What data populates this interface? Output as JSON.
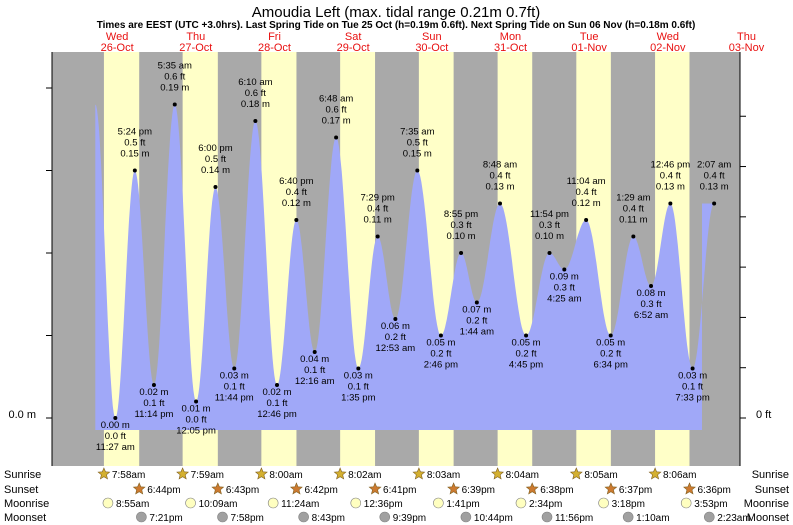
{
  "header": {
    "title": "Amoudia Left (max. tidal range 0.21m 0.7ft)",
    "subtitle": "Times are EEST (UTC +3.0hrs). Last Spring Tide on Tue 25 Oct (h=0.19m 0.6ft). Next Spring Tide on Sun 06 Nov (h=0.18m 0.6ft)"
  },
  "days": [
    {
      "dow": "Wed",
      "date": "26-Oct"
    },
    {
      "dow": "Thu",
      "date": "27-Oct"
    },
    {
      "dow": "Fri",
      "date": "28-Oct"
    },
    {
      "dow": "Sat",
      "date": "29-Oct"
    },
    {
      "dow": "Sun",
      "date": "30-Oct"
    },
    {
      "dow": "Mon",
      "date": "31-Oct"
    },
    {
      "dow": "Tue",
      "date": "01-Nov"
    },
    {
      "dow": "Wed",
      "date": "02-Nov"
    },
    {
      "dow": "Thu",
      "date": "03-Nov"
    }
  ],
  "axis": {
    "left_label": "0.0 m",
    "right_label": "0 ft"
  },
  "row_labels": [
    "Sunrise",
    "Sunset",
    "Moonrise",
    "Moonset"
  ],
  "astro": {
    "sunrise": [
      "7:58am",
      "7:59am",
      "8:00am",
      "8:02am",
      "8:03am",
      "8:04am",
      "8:05am",
      "8:06am"
    ],
    "sunset": [
      "6:44pm",
      "6:43pm",
      "6:42pm",
      "6:41pm",
      "6:39pm",
      "6:38pm",
      "6:37pm",
      "6:36pm"
    ],
    "moonrise": [
      "8:55am",
      "10:09am",
      "11:24am",
      "12:36pm",
      "1:41pm",
      "2:34pm",
      "3:18pm",
      "3:53pm"
    ],
    "moonset": [
      "7:21pm",
      "7:58pm",
      "8:43pm",
      "9:39pm",
      "10:44pm",
      "11:56pm",
      "1:10am",
      "2:23am"
    ]
  },
  "colors": {
    "night": "#a9a9a9",
    "day": "#ffffc8",
    "water": "#a0a8f8",
    "day_label": "#e81010",
    "sun_star": "#d4b030",
    "sunset_star": "#cc7a30",
    "moon": "#ffffc0",
    "moonset": "#a0a0a0"
  },
  "chart_data": {
    "type": "area",
    "x_unit": "hours since 26-Oct 00:00 EEST",
    "y_unit": "m",
    "ylim": [
      0,
      0.21
    ],
    "extremes": [
      {
        "label": "0.00 m",
        "ft": "0.0 ft",
        "time": "11:27 am",
        "t": 11.45,
        "h": 0.0,
        "type": "low"
      },
      {
        "label": "5:24 pm",
        "ft": "0.5 ft",
        "time": "0.15 m",
        "t": 17.4,
        "h": 0.15,
        "type": "high"
      },
      {
        "label": "0.02 m",
        "ft": "0.1 ft",
        "time": "11:14 pm",
        "t": 23.23,
        "h": 0.02,
        "type": "low"
      },
      {
        "label": "5:35 am",
        "ft": "0.6 ft",
        "time": "0.19 m",
        "t": 29.58,
        "h": 0.19,
        "type": "high"
      },
      {
        "label": "0.01 m",
        "ft": "0.0 ft",
        "time": "12:05 pm",
        "t": 36.08,
        "h": 0.01,
        "type": "low"
      },
      {
        "label": "6:00 pm",
        "ft": "0.5 ft",
        "time": "0.14 m",
        "t": 42.0,
        "h": 0.14,
        "type": "high"
      },
      {
        "label": "0.03 m",
        "ft": "0.1 ft",
        "time": "11:44 pm",
        "t": 47.73,
        "h": 0.03,
        "type": "low"
      },
      {
        "label": "6:10 am",
        "ft": "0.6 ft",
        "time": "0.18 m",
        "t": 54.17,
        "h": 0.18,
        "type": "high"
      },
      {
        "label": "0.02 m",
        "ft": "0.1 ft",
        "time": "12:46 pm",
        "t": 60.77,
        "h": 0.02,
        "type": "low"
      },
      {
        "label": "6:40 pm",
        "ft": "0.4 ft",
        "time": "0.12 m",
        "t": 66.67,
        "h": 0.12,
        "type": "high"
      },
      {
        "label": "0.04 m",
        "ft": "0.1 ft",
        "time": "12:16 am",
        "t": 72.27,
        "h": 0.04,
        "type": "low"
      },
      {
        "label": "6:48 am",
        "ft": "0.6 ft",
        "time": "0.17 m",
        "t": 78.8,
        "h": 0.17,
        "type": "high"
      },
      {
        "label": "0.03 m",
        "ft": "0.1 ft",
        "time": "1:35 pm",
        "t": 85.58,
        "h": 0.03,
        "type": "low"
      },
      {
        "label": "7:29 pm",
        "ft": "0.4 ft",
        "time": "0.11 m",
        "t": 91.48,
        "h": 0.11,
        "type": "high"
      },
      {
        "label": "0.06 m",
        "ft": "0.2 ft",
        "time": "12:53 am",
        "t": 96.88,
        "h": 0.06,
        "type": "low"
      },
      {
        "label": "7:35 am",
        "ft": "0.5 ft",
        "time": "0.15 m",
        "t": 103.58,
        "h": 0.15,
        "type": "high"
      },
      {
        "label": "0.05 m",
        "ft": "0.2 ft",
        "time": "2:46 pm",
        "t": 110.77,
        "h": 0.05,
        "type": "low"
      },
      {
        "label": "8:55 pm",
        "ft": "0.3 ft",
        "time": "0.10 m",
        "t": 116.92,
        "h": 0.1,
        "type": "high"
      },
      {
        "label": "0.07 m",
        "ft": "0.2 ft",
        "time": "1:44 am",
        "t": 121.73,
        "h": 0.07,
        "type": "low"
      },
      {
        "label": "8:48 am",
        "ft": "0.4 ft",
        "time": "0.13 m",
        "t": 128.8,
        "h": 0.13,
        "type": "high"
      },
      {
        "label": "0.05 m",
        "ft": "0.2 ft",
        "time": "4:45 pm",
        "t": 136.75,
        "h": 0.05,
        "type": "low"
      },
      {
        "label": "11:54 pm",
        "ft": "0.3 ft",
        "time": "0.10 m",
        "t": 143.9,
        "h": 0.1,
        "type": "high"
      },
      {
        "label": "0.09 m",
        "ft": "0.3 ft",
        "time": "4:25 am",
        "t": 148.42,
        "h": 0.09,
        "type": "low"
      },
      {
        "label": "11:04 am",
        "ft": "0.4 ft",
        "time": "0.12 m",
        "t": 155.07,
        "h": 0.12,
        "type": "high"
      },
      {
        "label": "0.05 m",
        "ft": "0.2 ft",
        "time": "6:34 pm",
        "t": 162.57,
        "h": 0.05,
        "type": "low"
      },
      {
        "label": "1:29 am",
        "ft": "0.4 ft",
        "time": "0.11 m",
        "t": 169.48,
        "h": 0.11,
        "type": "high"
      },
      {
        "label": "0.08 m",
        "ft": "0.3 ft",
        "time": "6:52 am",
        "t": 174.87,
        "h": 0.08,
        "type": "low"
      },
      {
        "label": "12:46 pm",
        "ft": "0.4 ft",
        "time": "0.13 m",
        "t": 180.77,
        "h": 0.13,
        "type": "high"
      },
      {
        "label": "0.03 m",
        "ft": "0.1 ft",
        "time": "7:33 pm",
        "t": 187.55,
        "h": 0.03,
        "type": "low"
      },
      {
        "label": "2:07 am",
        "ft": "0.4 ft",
        "time": "0.13 m",
        "t": 194.12,
        "h": 0.13,
        "type": "high"
      }
    ],
    "daylight": [
      {
        "rise": 7.97,
        "set": 18.73
      },
      {
        "rise": 31.98,
        "set": 42.72
      },
      {
        "rise": 56.0,
        "set": 66.7
      },
      {
        "rise": 80.03,
        "set": 90.68
      },
      {
        "rise": 104.05,
        "set": 114.65
      },
      {
        "rise": 128.07,
        "set": 138.63
      },
      {
        "rise": 152.08,
        "set": 162.62
      },
      {
        "rise": 176.1,
        "set": 186.6
      }
    ]
  }
}
